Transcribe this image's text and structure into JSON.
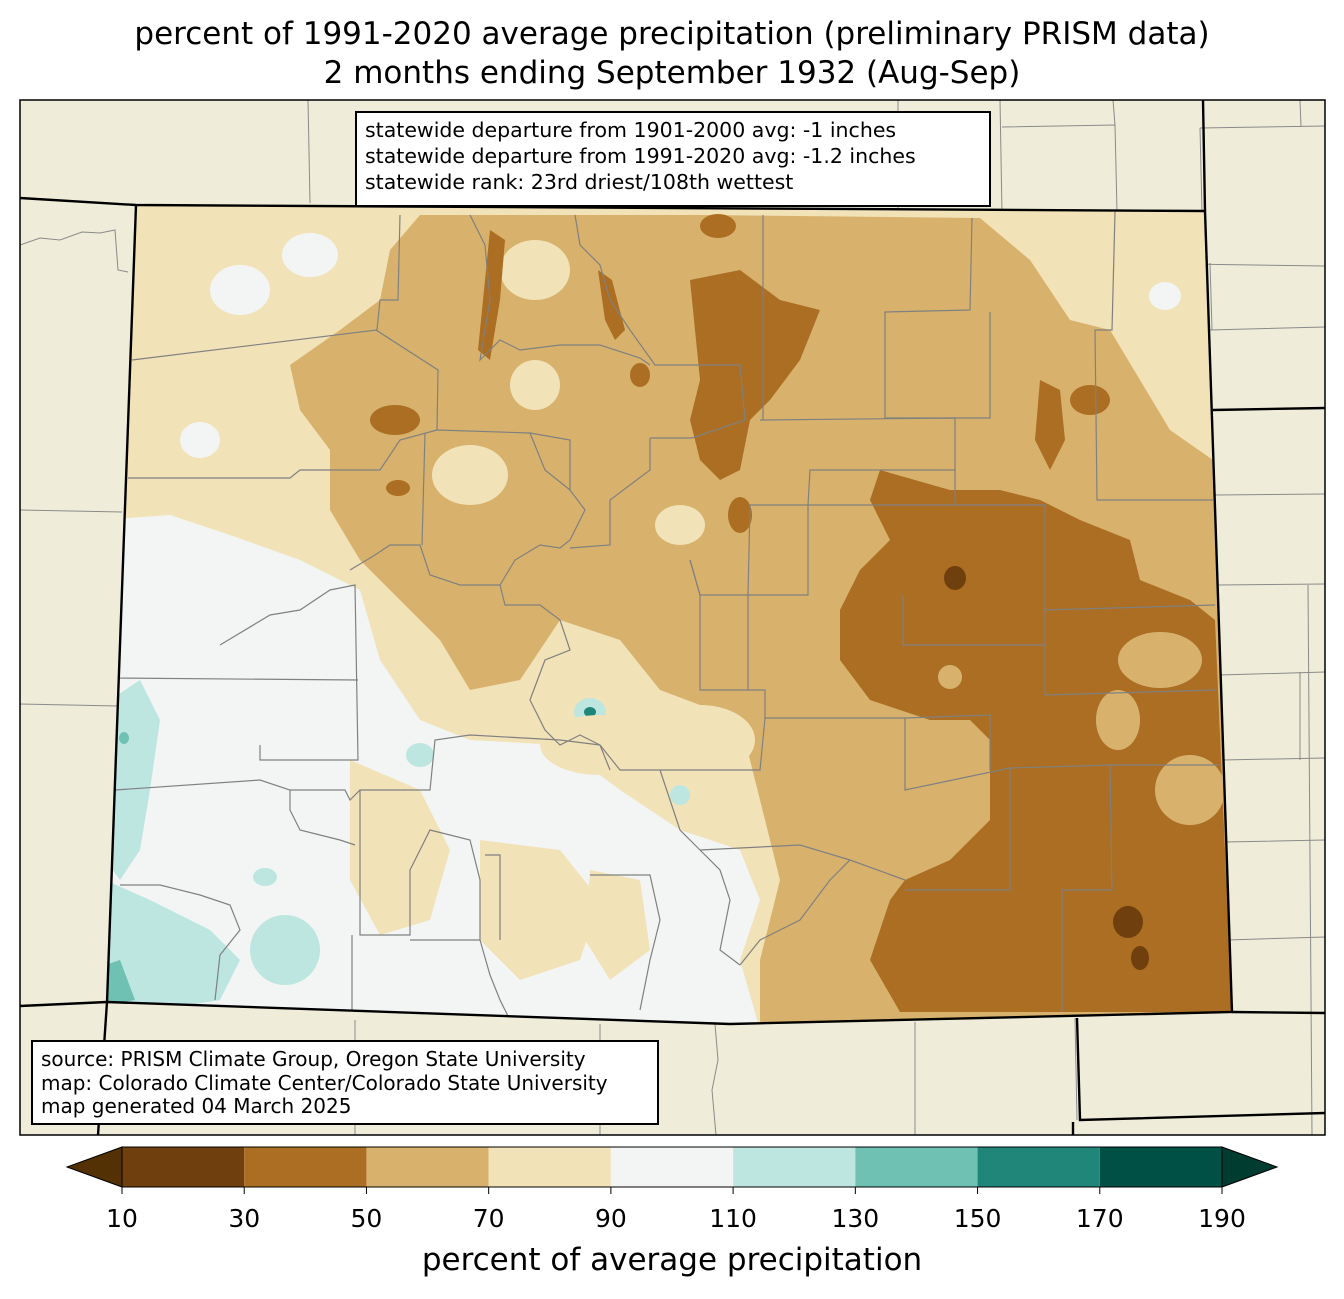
{
  "title": {
    "line1": "percent of 1991-2020 average precipitation (preliminary PRISM data)",
    "line2": "2 months ending September 1932 (Aug-Sep)"
  },
  "stats": {
    "line1": "statewide departure from 1901-2000 avg: -1 inches",
    "line2": "statewide departure from 1991-2020 avg: -1.2 inches",
    "line3": "statewide rank: 23rd driest/108th wettest"
  },
  "source": {
    "line1": "source: PRISM Climate Group, Oregon State University",
    "line2": "map: Colorado Climate Center/Colorado State University",
    "line3": "map generated 04 March 2025"
  },
  "colorbar": {
    "label": "percent of average precipitation",
    "ticks": [
      "10",
      "30",
      "50",
      "70",
      "90",
      "110",
      "130",
      "150",
      "170",
      "190"
    ],
    "bins": [
      {
        "range": "10-30",
        "color": "#6f3f0e"
      },
      {
        "range": "30-50",
        "color": "#ab6e22"
      },
      {
        "range": "50-70",
        "color": "#d8b26d"
      },
      {
        "range": "70-90",
        "color": "#f2e2b8"
      },
      {
        "range": "90-110",
        "color": "#f3f5f4"
      },
      {
        "range": "110-130",
        "color": "#bde6e1"
      },
      {
        "range": "130-150",
        "color": "#6fc1b3"
      },
      {
        "range": "150-170",
        "color": "#21867a"
      },
      {
        "range": "170-190",
        "color": "#005045"
      }
    ],
    "under_color": "#543005",
    "over_color": "#003c30"
  },
  "map": {
    "background_color": "#efedda",
    "county_line_color": "#808080",
    "state_line_color": "#000000"
  }
}
